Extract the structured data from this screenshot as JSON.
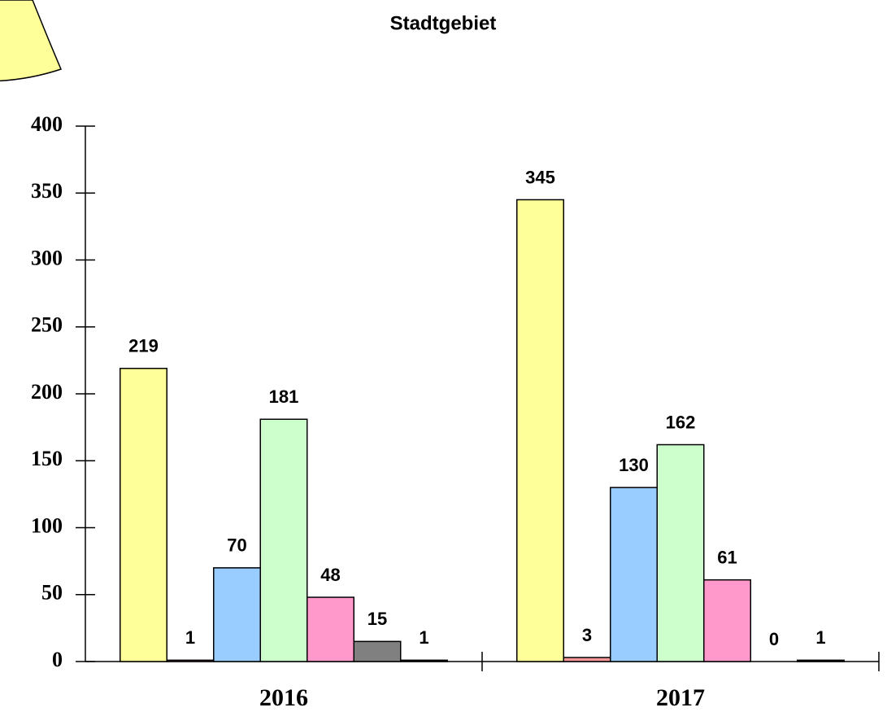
{
  "chart_data": {
    "type": "bar",
    "title": "Stadtgebiet",
    "categories": [
      "2016",
      "2017"
    ],
    "series": [
      {
        "color": "#ffff99",
        "values": [
          219,
          345
        ]
      },
      {
        "color": "#ff9999",
        "values": [
          1,
          3
        ]
      },
      {
        "color": "#99ccff",
        "values": [
          70,
          130
        ]
      },
      {
        "color": "#ccffcc",
        "values": [
          181,
          162
        ]
      },
      {
        "color": "#ff99cc",
        "values": [
          48,
          61
        ]
      },
      {
        "color": "#808080",
        "values": [
          15,
          0
        ]
      },
      {
        "color": "#333333",
        "values": [
          1,
          1
        ]
      }
    ],
    "ylim": [
      0,
      400
    ],
    "yticks": [
      0,
      50,
      100,
      150,
      200,
      250,
      300,
      350,
      400
    ]
  }
}
